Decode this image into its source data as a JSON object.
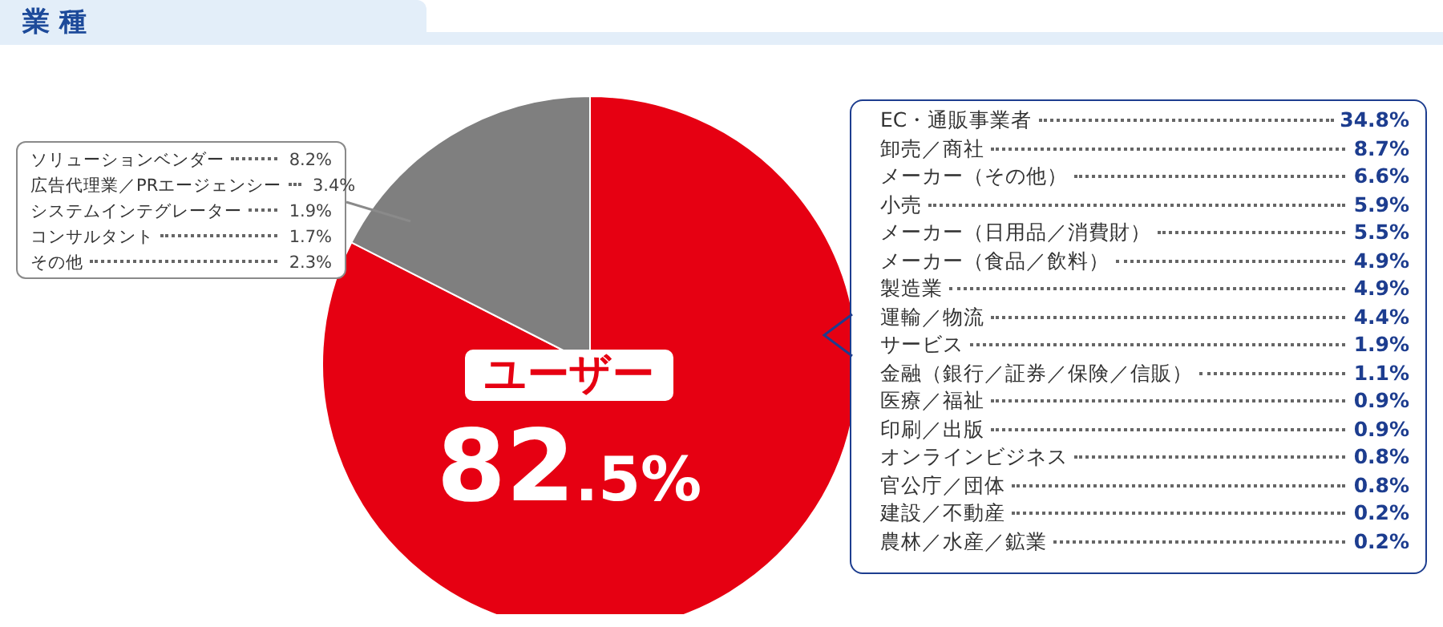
{
  "chart_data": {
    "type": "pie",
    "title": "業 種",
    "categories": [
      "ユーザー",
      null
    ],
    "values": [
      82.5,
      17.5
    ],
    "colors": [
      "#e60012",
      "#7f7f7f"
    ],
    "value_labels": [
      "82.5%",
      null
    ],
    "legend": false,
    "annotations": [
      "ソリューションベンダー 8.2%",
      "広告代理業／PRエージェンシー 3.4%",
      "システムインテグレーター 1.9%",
      "コンサルタント 1.7%",
      "その他 2.3%",
      "EC・通販事業者 34.8%",
      "卸売／商社 8.7%",
      "メーカー（その他） 6.6%",
      "小売 5.9%",
      "メーカー（日用品／消費財） 5.5%",
      "メーカー（食品／飲料） 4.9%",
      "製造業 4.9%",
      "運輸／物流 4.4%",
      "サービス 1.9%",
      "金融（銀行／証券／保険／信販） 1.1%",
      "医療／福祉 0.9%",
      "印刷／出版 0.9%",
      "オンラインビジネス 0.8%",
      "官公庁／団体 0.8%",
      "建設／不動産 0.2%",
      "農林／水産／鉱業 0.2%"
    ]
  }
}
